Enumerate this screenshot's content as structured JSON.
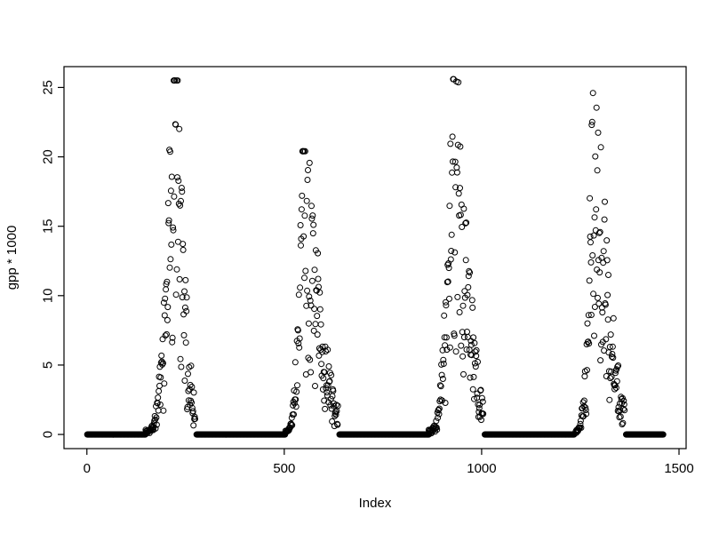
{
  "figure": {
    "background": "#ffffff",
    "foreground": "#000000"
  },
  "chart_data": {
    "type": "scatter",
    "title": "",
    "xlabel": "Index",
    "ylabel": "gpp * 1000",
    "xlim": [
      -58,
      1518
    ],
    "ylim": [
      -1.02,
      26.5
    ],
    "x_data_range": [
      1,
      1460
    ],
    "x_ticks": [
      0,
      500,
      1000,
      1500
    ],
    "y_ticks": [
      0,
      5,
      10,
      15,
      20,
      25
    ],
    "grid": false,
    "marker": {
      "shape": "open-circle",
      "color": "#000000",
      "radius_px": 3
    },
    "seed": 7,
    "series_description": "Seasonal GPP time series: dense runs of zero values along the baseline separated by four growing-season peaks of scattered points",
    "baseline_runs": [
      [
        1,
        148
      ],
      [
        278,
        502
      ],
      [
        640,
        866
      ],
      [
        1008,
        1234
      ],
      [
        1366,
        1460
      ]
    ],
    "peaks": [
      {
        "rise_start": 148,
        "peak_x": 220,
        "fall_end": 274,
        "peak_y": 25.5
      },
      {
        "rise_start": 502,
        "peak_x": 548,
        "fall_end": 636,
        "peak_y": 20.4
      },
      {
        "rise_start": 866,
        "peak_x": 928,
        "fall_end": 1004,
        "peak_y": 25.6
      },
      {
        "rise_start": 1238,
        "peak_x": 1282,
        "fall_end": 1362,
        "peak_y": 24.6
      }
    ]
  }
}
